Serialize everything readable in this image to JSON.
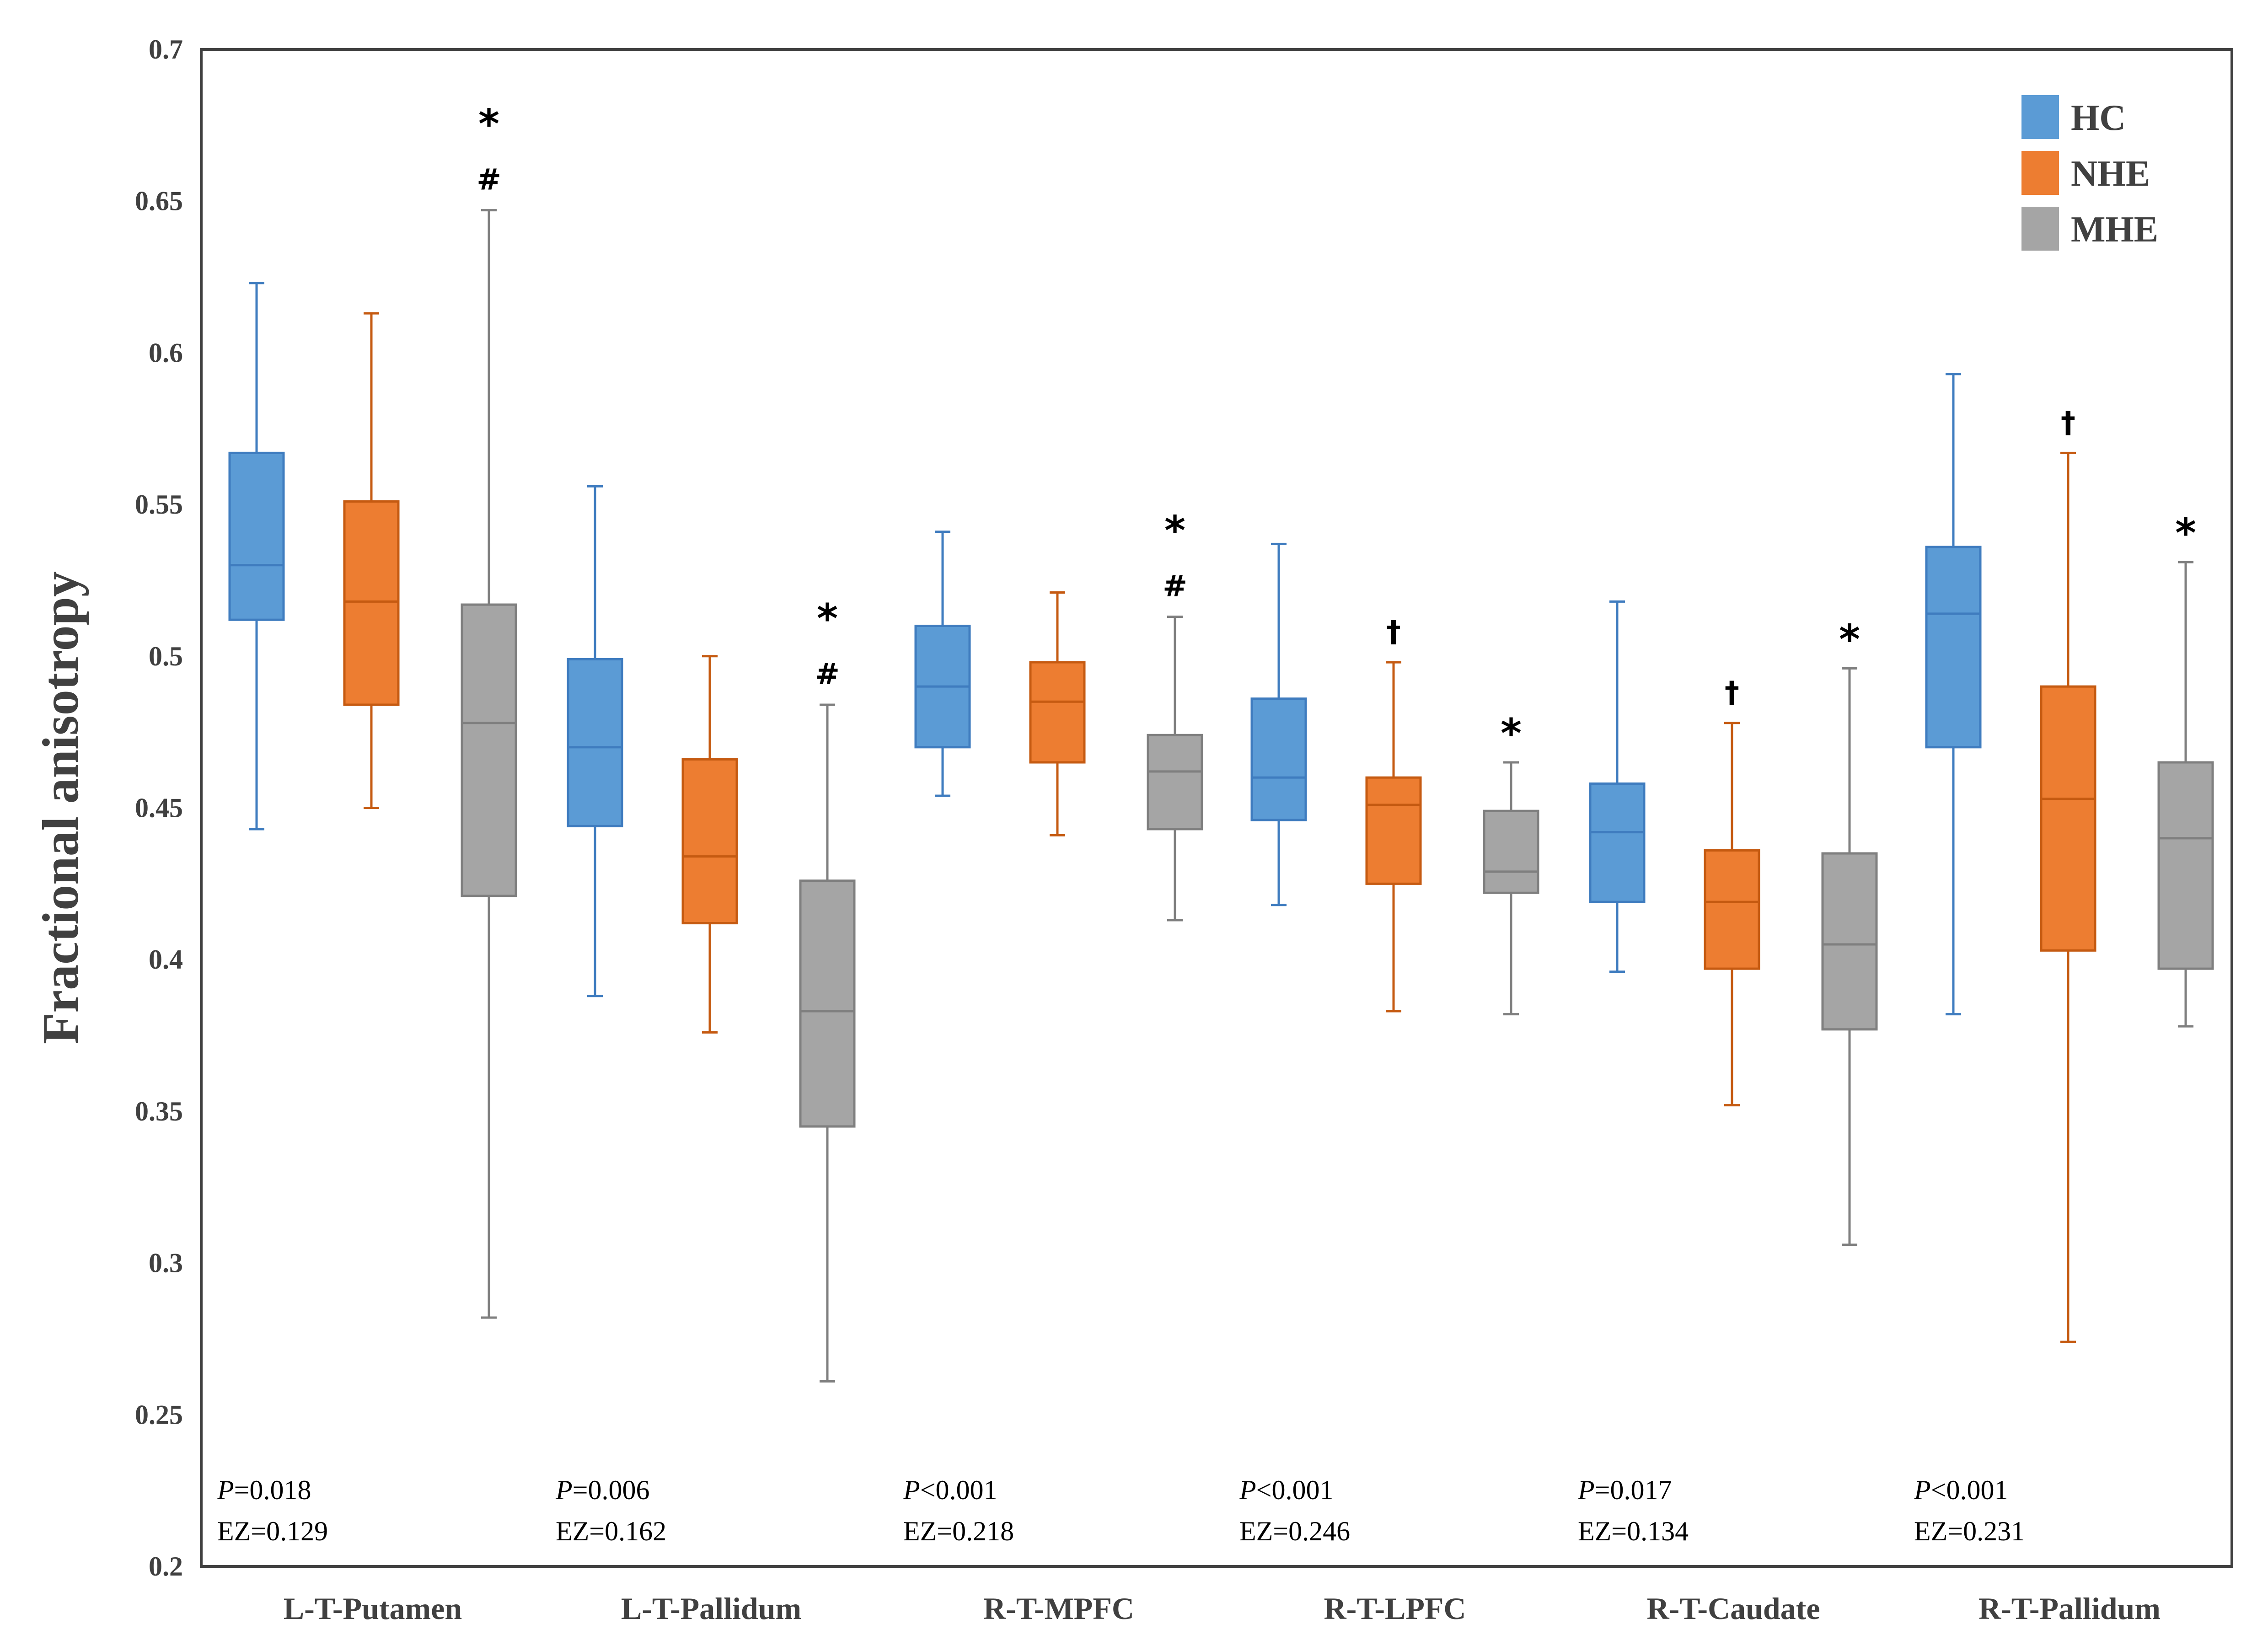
{
  "chart_data": {
    "type": "boxplot",
    "ylabel": "Fractional anisotropy",
    "xlabel": "",
    "ylim": [
      0.2,
      0.7
    ],
    "yticks": [
      "0.2",
      "0.25",
      "0.3",
      "0.35",
      "0.4",
      "0.45",
      "0.5",
      "0.55",
      "0.6",
      "0.65",
      "0.7"
    ],
    "grid": false,
    "legend_position": "top-right",
    "series": [
      {
        "name": "HC",
        "color": "#5B9BD5",
        "stroke": "#3F7CBF"
      },
      {
        "name": "NHE",
        "color": "#ED7D31",
        "stroke": "#C55A11"
      },
      {
        "name": "MHE",
        "color": "#A5A5A5",
        "stroke": "#7F7F7F"
      }
    ],
    "categories": [
      {
        "label": "L-T-Putamen",
        "p_prefix": "P",
        "p_text": "=0.018",
        "ez_text": "EZ=0.129",
        "boxes": [
          {
            "min": 0.443,
            "q1": 0.512,
            "median": 0.53,
            "q3": 0.567,
            "max": 0.623,
            "marks": []
          },
          {
            "min": 0.45,
            "q1": 0.484,
            "median": 0.518,
            "q3": 0.551,
            "max": 0.613,
            "marks": []
          },
          {
            "min": 0.282,
            "q1": 0.421,
            "median": 0.478,
            "q3": 0.517,
            "max": 0.647,
            "marks": [
              "#",
              "*"
            ]
          }
        ]
      },
      {
        "label": "L-T-Pallidum",
        "p_prefix": "P",
        "p_text": "=0.006",
        "ez_text": "EZ=0.162",
        "boxes": [
          {
            "min": 0.388,
            "q1": 0.444,
            "median": 0.47,
            "q3": 0.499,
            "max": 0.556,
            "marks": []
          },
          {
            "min": 0.376,
            "q1": 0.412,
            "median": 0.434,
            "q3": 0.466,
            "max": 0.5,
            "marks": []
          },
          {
            "min": 0.261,
            "q1": 0.345,
            "median": 0.383,
            "q3": 0.426,
            "max": 0.484,
            "marks": [
              "#",
              "*"
            ]
          }
        ]
      },
      {
        "label": "R-T-MPFC",
        "p_prefix": "P",
        "p_text": "<0.001",
        "ez_text": "EZ=0.218",
        "boxes": [
          {
            "min": 0.454,
            "q1": 0.47,
            "median": 0.49,
            "q3": 0.51,
            "max": 0.541,
            "marks": []
          },
          {
            "min": 0.441,
            "q1": 0.465,
            "median": 0.485,
            "q3": 0.498,
            "max": 0.521,
            "marks": []
          },
          {
            "min": 0.413,
            "q1": 0.443,
            "median": 0.462,
            "q3": 0.474,
            "max": 0.513,
            "marks": [
              "#",
              "*"
            ]
          }
        ]
      },
      {
        "label": "R-T-LPFC",
        "p_prefix": "P",
        "p_text": "<0.001",
        "ez_text": "EZ=0.246",
        "boxes": [
          {
            "min": 0.418,
            "q1": 0.446,
            "median": 0.46,
            "q3": 0.486,
            "max": 0.537,
            "marks": []
          },
          {
            "min": 0.383,
            "q1": 0.425,
            "median": 0.451,
            "q3": 0.46,
            "max": 0.498,
            "marks": [
              "†"
            ]
          },
          {
            "min": 0.382,
            "q1": 0.422,
            "median": 0.429,
            "q3": 0.449,
            "max": 0.465,
            "marks": [
              "*"
            ]
          }
        ]
      },
      {
        "label": "R-T-Caudate",
        "p_prefix": "P",
        "p_text": "=0.017",
        "ez_text": "EZ=0.134",
        "boxes": [
          {
            "min": 0.396,
            "q1": 0.419,
            "median": 0.442,
            "q3": 0.458,
            "max": 0.518,
            "marks": []
          },
          {
            "min": 0.352,
            "q1": 0.397,
            "median": 0.419,
            "q3": 0.436,
            "max": 0.478,
            "marks": [
              "†"
            ]
          },
          {
            "min": 0.306,
            "q1": 0.377,
            "median": 0.405,
            "q3": 0.435,
            "max": 0.496,
            "marks": [
              "*"
            ]
          }
        ]
      },
      {
        "label": "R-T-Pallidum",
        "p_prefix": "P",
        "p_text": "<0.001",
        "ez_text": "EZ=0.231",
        "boxes": [
          {
            "min": 0.382,
            "q1": 0.47,
            "median": 0.514,
            "q3": 0.536,
            "max": 0.593,
            "marks": []
          },
          {
            "min": 0.274,
            "q1": 0.403,
            "median": 0.453,
            "q3": 0.49,
            "max": 0.567,
            "marks": [
              "†"
            ]
          },
          {
            "min": 0.378,
            "q1": 0.397,
            "median": 0.44,
            "q3": 0.465,
            "max": 0.531,
            "marks": [
              "*"
            ]
          }
        ]
      }
    ]
  }
}
